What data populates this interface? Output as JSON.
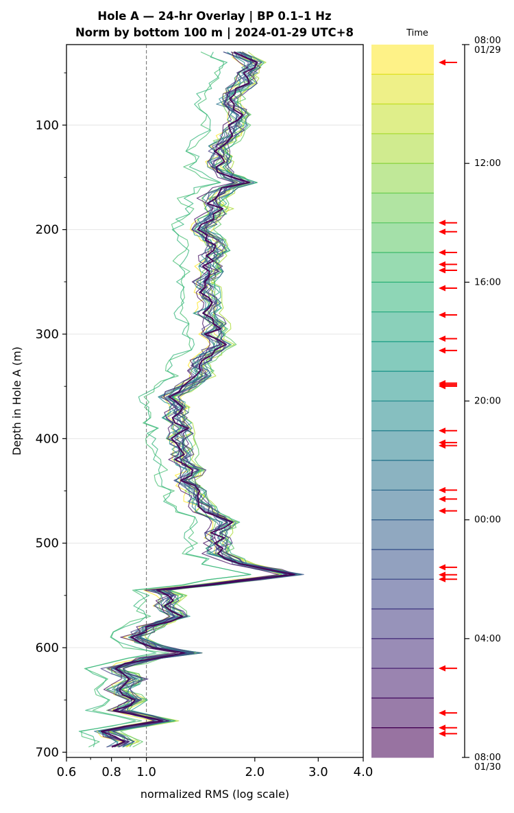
{
  "chart_data": {
    "type": "line",
    "title": [
      "Hole A — 24-hr Overlay  |  BP 0.1–1 Hz",
      "Norm by bottom 100 m  |  2024-01-29 UTC+8"
    ],
    "xlabel": "normalized RMS  (log scale)",
    "ylabel": "Depth in Hole A (m)",
    "x_scale": "log",
    "xlim": [
      0.6,
      4.0
    ],
    "ylim": [
      705,
      23
    ],
    "y_inverted": true,
    "grid": "horizontal",
    "x_ticks": [
      0.6,
      0.8,
      1.0,
      2.0,
      3.0,
      4.0
    ],
    "x_tick_labels": [
      "0.6",
      "0.8",
      "1.0",
      "2.0",
      "3.0",
      "4.0"
    ],
    "y_ticks": [
      100,
      200,
      300,
      400,
      500,
      600,
      700
    ],
    "y_tick_labels": [
      "100",
      "200",
      "300",
      "400",
      "500",
      "600",
      "700"
    ],
    "reference_line": {
      "x": 1.0,
      "style": "dashed",
      "color": "#808080"
    },
    "series_count": 24,
    "colormap": [
      "#fde725",
      "#b5de2b",
      "#6ece58",
      "#35b779",
      "#1f9e89",
      "#26828e",
      "#31688e",
      "#3e4989",
      "#482878",
      "#440154"
    ],
    "profile": {
      "depth": [
        30,
        40,
        50,
        60,
        70,
        80,
        90,
        100,
        110,
        120,
        130,
        140,
        150,
        155,
        160,
        170,
        180,
        190,
        200,
        210,
        220,
        230,
        240,
        250,
        260,
        270,
        280,
        290,
        300,
        310,
        320,
        330,
        340,
        350,
        360,
        370,
        380,
        390,
        400,
        410,
        420,
        430,
        440,
        450,
        460,
        470,
        480,
        490,
        500,
        510,
        520,
        530,
        540,
        545,
        550,
        560,
        570,
        580,
        590,
        600,
        605,
        610,
        620,
        630,
        640,
        650,
        660,
        670,
        680,
        690,
        695
      ],
      "rms": [
        1.8,
        2.0,
        1.95,
        1.9,
        1.75,
        1.72,
        1.85,
        1.8,
        1.75,
        1.62,
        1.65,
        1.6,
        1.75,
        1.9,
        1.7,
        1.55,
        1.6,
        1.52,
        1.45,
        1.55,
        1.6,
        1.5,
        1.55,
        1.48,
        1.5,
        1.55,
        1.48,
        1.6,
        1.55,
        1.65,
        1.5,
        1.4,
        1.45,
        1.3,
        1.18,
        1.25,
        1.22,
        1.28,
        1.25,
        1.3,
        1.28,
        1.38,
        1.3,
        1.4,
        1.42,
        1.5,
        1.7,
        1.6,
        1.62,
        1.6,
        1.9,
        2.6,
        1.5,
        1.1,
        1.2,
        1.15,
        1.25,
        1.05,
        0.95,
        1.1,
        1.35,
        1.05,
        0.82,
        0.95,
        0.85,
        0.95,
        0.85,
        1.15,
        0.78,
        0.9,
        0.85
      ]
    },
    "colorbar": {
      "label": "Time",
      "range_hours": [
        0,
        24
      ],
      "bands": 24,
      "tick_hours": [
        0,
        4,
        8,
        12,
        16,
        20,
        24
      ],
      "tick_labels": [
        "08:00\n01/29",
        "12:00",
        "16:00",
        "20:00",
        "00:00",
        "04:00",
        "08:00\n01/30"
      ],
      "gradient_top": "#fde725",
      "gradient_bottom": "#440154",
      "band_opacity": 0.55,
      "arrow_color": "#ff0000",
      "arrow_hours": [
        0.6,
        6.0,
        6.3,
        7.0,
        7.4,
        7.6,
        8.2,
        9.1,
        9.9,
        10.3,
        11.4,
        11.45,
        11.5,
        13.0,
        13.4,
        13.5,
        15.0,
        15.3,
        15.7,
        17.6,
        17.85,
        18.0,
        21.0,
        22.5,
        23.0,
        23.2
      ]
    }
  }
}
